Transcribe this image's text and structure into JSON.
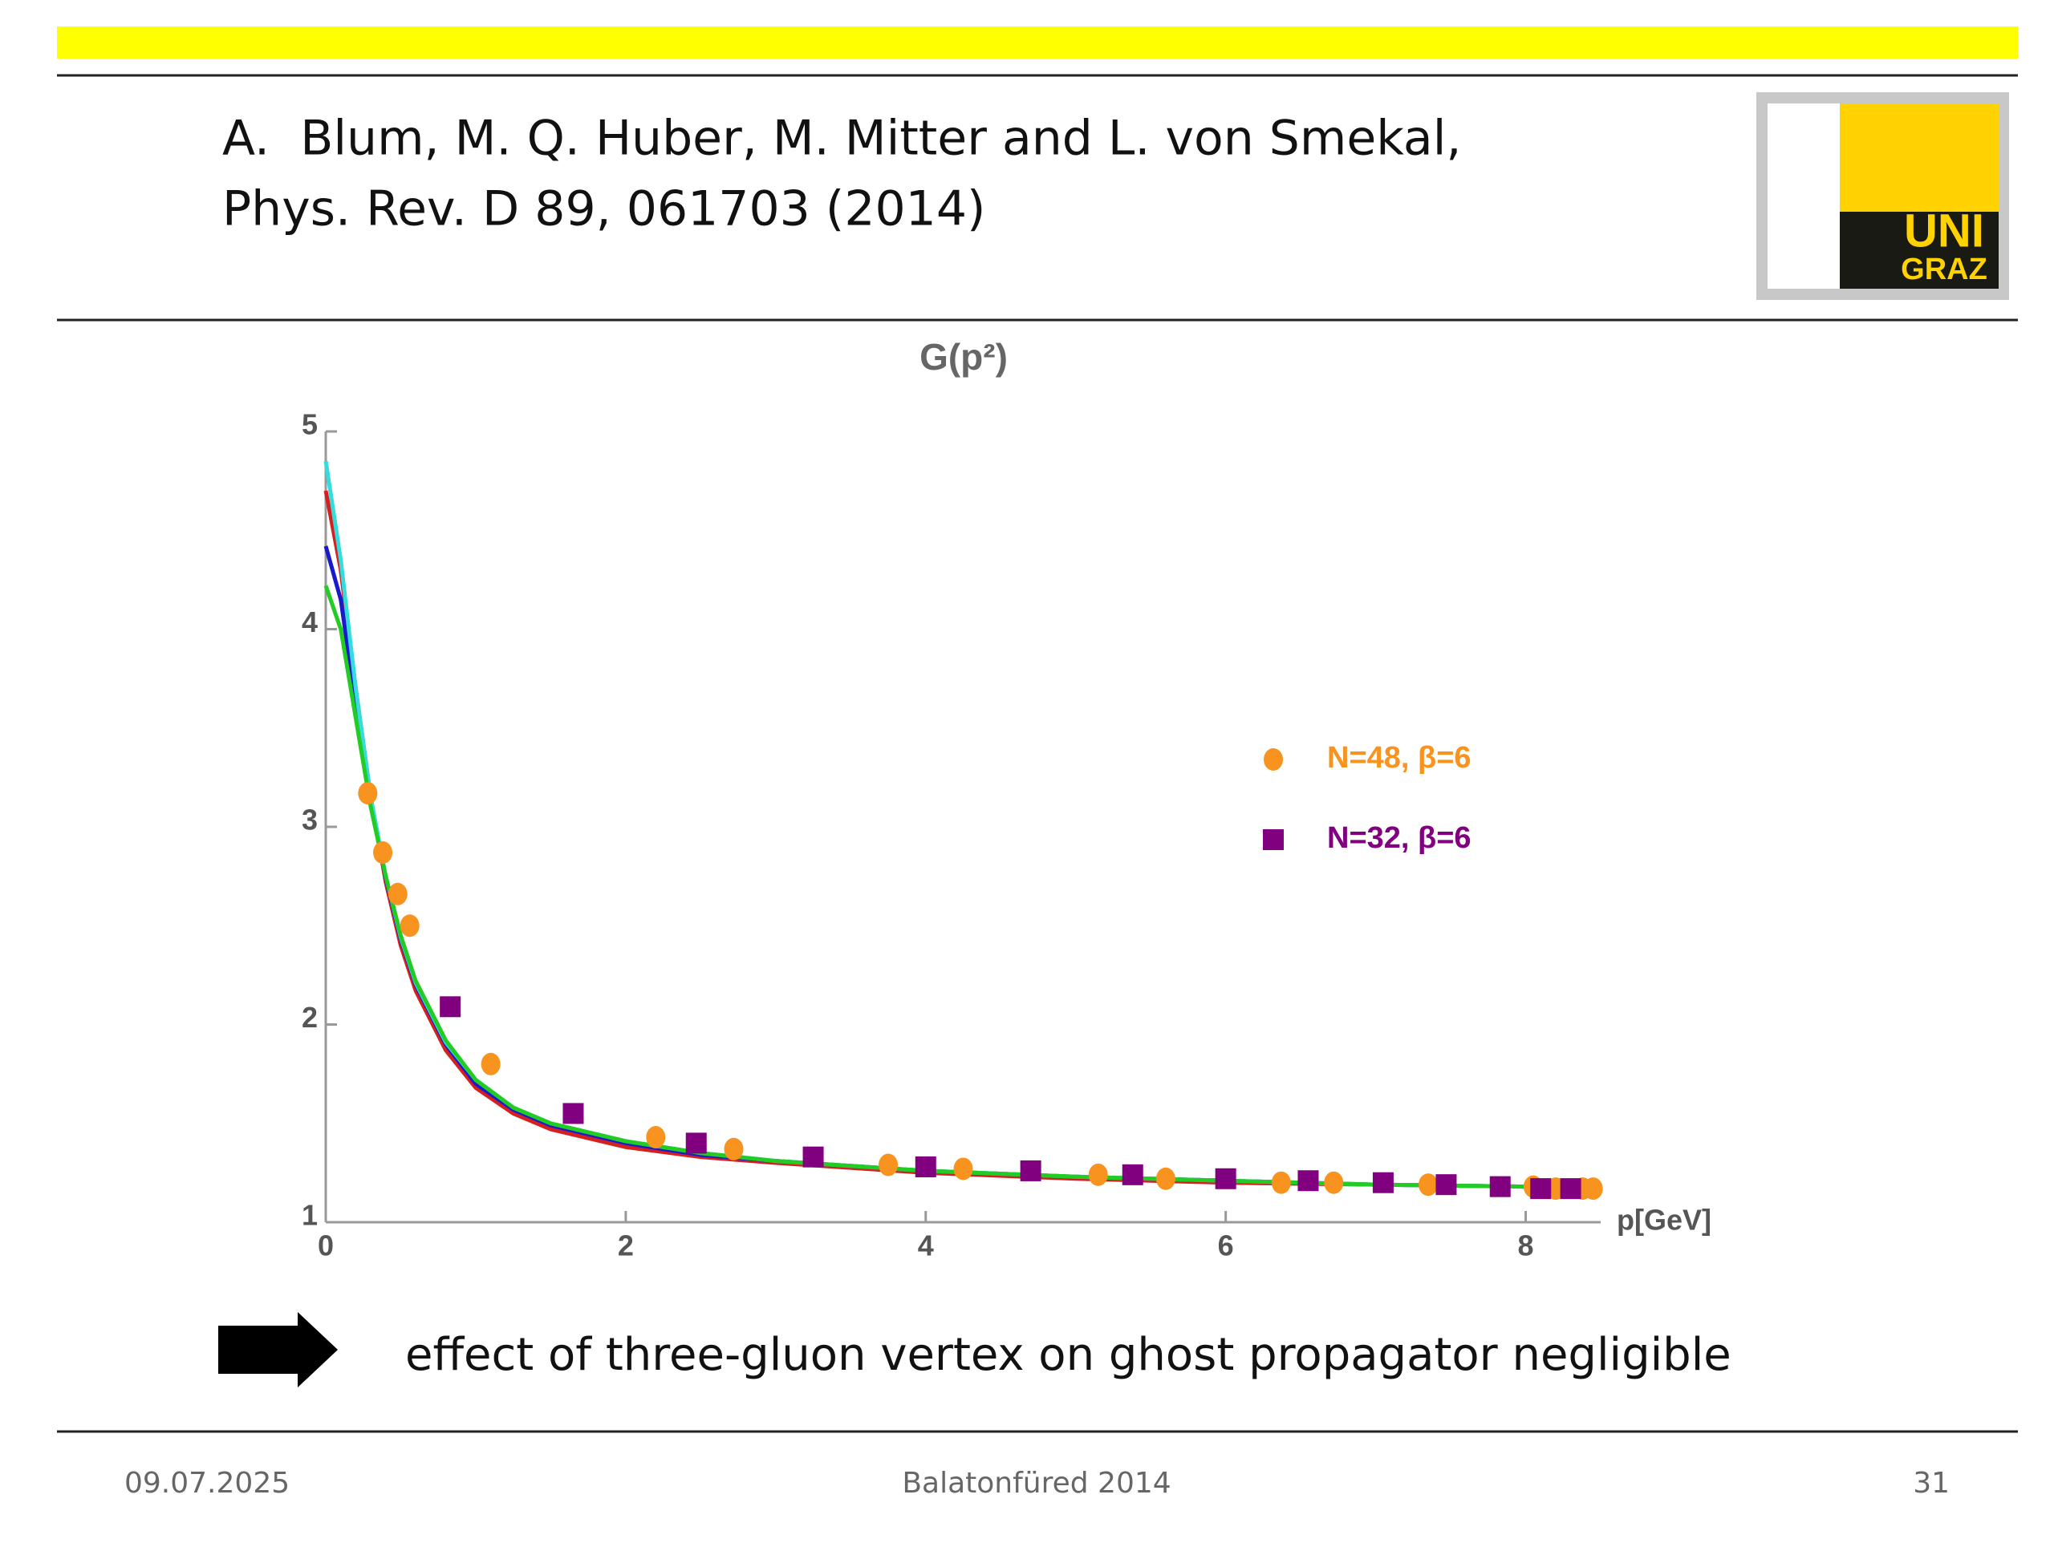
{
  "header": {
    "lines": [
      "A.  Blum, M. Q. Huber, M. Mitter and L. von Smekal,",
      "Phys. Rev. D 89, 061703 (2014)"
    ],
    "logo": [
      "UNI",
      "GRAZ"
    ]
  },
  "chart_data": {
    "type": "line",
    "title": "G(p²)",
    "x_label": "p[GeV]",
    "xlim": [
      0,
      8.5
    ],
    "ylim": [
      1,
      5
    ],
    "xticks": [
      0,
      2,
      4,
      6,
      8
    ],
    "yticks": [
      1,
      2,
      3,
      4,
      5
    ],
    "series": [
      {
        "color": "#d62020",
        "mode": "line",
        "x": [
          0,
          0.1,
          0.2,
          0.3,
          0.4,
          0.5,
          0.6,
          0.8,
          1.0,
          1.25,
          1.5,
          2,
          2.5,
          3,
          4,
          5,
          6,
          7,
          8,
          8.5
        ],
        "values": [
          4.7,
          4.3,
          3.7,
          3.15,
          2.72,
          2.4,
          2.17,
          1.87,
          1.68,
          1.55,
          1.47,
          1.38,
          1.33,
          1.3,
          1.25,
          1.22,
          1.2,
          1.19,
          1.18,
          1.17
        ]
      },
      {
        "color": "#1a1acc",
        "mode": "line",
        "x": [
          0,
          0.1,
          0.2,
          0.3,
          0.4,
          0.5,
          0.6,
          0.8,
          1.0,
          1.25,
          1.5,
          2,
          2.5,
          3,
          4,
          5,
          6,
          7,
          8,
          8.5
        ],
        "values": [
          4.42,
          4.15,
          3.62,
          3.12,
          2.74,
          2.43,
          2.2,
          1.9,
          1.7,
          1.57,
          1.49,
          1.4,
          1.34,
          1.31,
          1.26,
          1.23,
          1.21,
          1.19,
          1.18,
          1.17
        ]
      },
      {
        "color": "#33dddd",
        "mode": "line",
        "x": [
          0,
          0.1,
          0.2,
          0.3,
          0.4,
          0.5,
          0.6,
          0.8,
          1.0,
          1.25,
          1.5,
          2,
          2.5,
          3,
          4,
          5,
          6,
          7,
          8,
          8.5
        ],
        "values": [
          4.85,
          4.35,
          3.7,
          3.15,
          2.75,
          2.44,
          2.21,
          1.91,
          1.72,
          1.58,
          1.5,
          1.41,
          1.35,
          1.31,
          1.26,
          1.23,
          1.21,
          1.19,
          1.18,
          1.17
        ]
      },
      {
        "color": "#22cc22",
        "mode": "line",
        "x": [
          0,
          0.1,
          0.2,
          0.3,
          0.4,
          0.5,
          0.6,
          0.8,
          1.0,
          1.25,
          1.5,
          2,
          2.5,
          3,
          4,
          5,
          6,
          7,
          8,
          8.5
        ],
        "values": [
          4.22,
          4.0,
          3.55,
          3.1,
          2.75,
          2.45,
          2.22,
          1.92,
          1.72,
          1.58,
          1.5,
          1.41,
          1.35,
          1.31,
          1.26,
          1.23,
          1.21,
          1.19,
          1.18,
          1.17
        ]
      },
      {
        "name": "N=48, β=6",
        "color": "#f7931e",
        "mode": "circle",
        "x": [
          0.28,
          0.38,
          0.48,
          0.56,
          1.1,
          2.2,
          2.72,
          3.75,
          4.25,
          5.15,
          5.6,
          6.37,
          6.72,
          7.35,
          8.05,
          8.2,
          8.38,
          8.45
        ],
        "values": [
          3.17,
          2.87,
          2.66,
          2.5,
          1.8,
          1.43,
          1.37,
          1.29,
          1.27,
          1.24,
          1.22,
          1.2,
          1.2,
          1.19,
          1.18,
          1.17,
          1.17,
          1.17
        ]
      },
      {
        "name": "N=32, β=6",
        "color": "#800080",
        "mode": "square",
        "x": [
          0.83,
          1.65,
          2.47,
          3.25,
          4.0,
          4.7,
          5.38,
          6.0,
          6.55,
          7.05,
          7.47,
          7.83,
          8.1,
          8.3
        ],
        "values": [
          2.09,
          1.55,
          1.4,
          1.33,
          1.28,
          1.26,
          1.24,
          1.22,
          1.21,
          1.2,
          1.19,
          1.18,
          1.17,
          1.17
        ]
      }
    ]
  },
  "conclusion": "effect of three-gluon vertex on ghost propagator negligible",
  "footer": {
    "date": "09.07.2025",
    "event": "Balatonfüred 2014",
    "page": "31"
  }
}
